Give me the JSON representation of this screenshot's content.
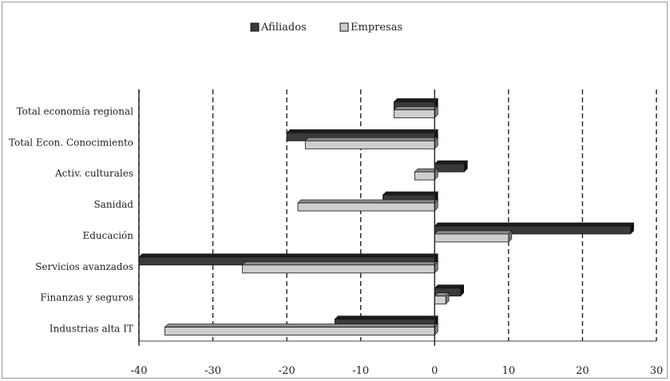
{
  "chart_data": {
    "type": "bar",
    "orientation": "horizontal",
    "categories": [
      "Total economía regional",
      "Total Econ. Conocimiento",
      "Activ. culturales",
      "Sanidad",
      "Educación",
      "Servicios avanzados",
      "Finanzas y seguros",
      "Industrias alta IT"
    ],
    "series": [
      {
        "name": "Afiliados",
        "color": "#3a3a3a",
        "values": [
          -5.5,
          -20,
          4,
          -7,
          26.5,
          -40,
          3.5,
          -13.5
        ]
      },
      {
        "name": "Empresas",
        "color": "#cfcfcf",
        "values": [
          -5.5,
          -17.5,
          -2.7,
          -18.5,
          10,
          -26,
          1.5,
          -36.5
        ]
      }
    ],
    "xlim": [
      -40,
      30
    ],
    "xticks": [
      "-40",
      "-30",
      "-20",
      "-10",
      "0",
      "10",
      "20",
      "30"
    ],
    "grid": "vertical dashed",
    "legend_position": "top-center"
  }
}
